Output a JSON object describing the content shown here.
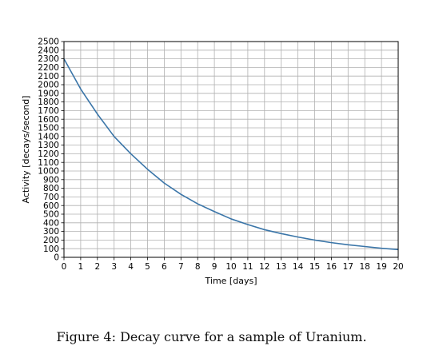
{
  "figure": {
    "caption": "Figure 4: Decay curve for a sample of Uranium."
  },
  "chart_data": {
    "type": "line",
    "title": "",
    "xlabel": "Time [days]",
    "ylabel": "Activity [decays/second]",
    "xlim": [
      0,
      20
    ],
    "ylim": [
      0,
      2500
    ],
    "xticks": [
      "0",
      "1",
      "2",
      "3",
      "4",
      "5",
      "6",
      "7",
      "8",
      "9",
      "10",
      "11",
      "12",
      "13",
      "14",
      "15",
      "16",
      "17",
      "18",
      "19",
      "20"
    ],
    "yticks": [
      "0",
      "100",
      "200",
      "300",
      "400",
      "500",
      "600",
      "700",
      "800",
      "900",
      "1000",
      "1100",
      "1200",
      "1300",
      "1400",
      "1500",
      "1600",
      "1700",
      "1800",
      "1900",
      "2000",
      "2100",
      "2200",
      "2300",
      "2400",
      "2500"
    ],
    "grid": true,
    "line_color": "#3a75a8",
    "series": [
      {
        "x": [
          0,
          1,
          2,
          3,
          4,
          5,
          6,
          7,
          8,
          9,
          10,
          11,
          12,
          13,
          14,
          15,
          16,
          17,
          18,
          19,
          20
        ],
        "y": [
          2300,
          1950,
          1660,
          1400,
          1200,
          1020,
          860,
          730,
          620,
          530,
          445,
          380,
          320,
          275,
          235,
          200,
          170,
          145,
          125,
          105,
          90
        ]
      }
    ]
  }
}
